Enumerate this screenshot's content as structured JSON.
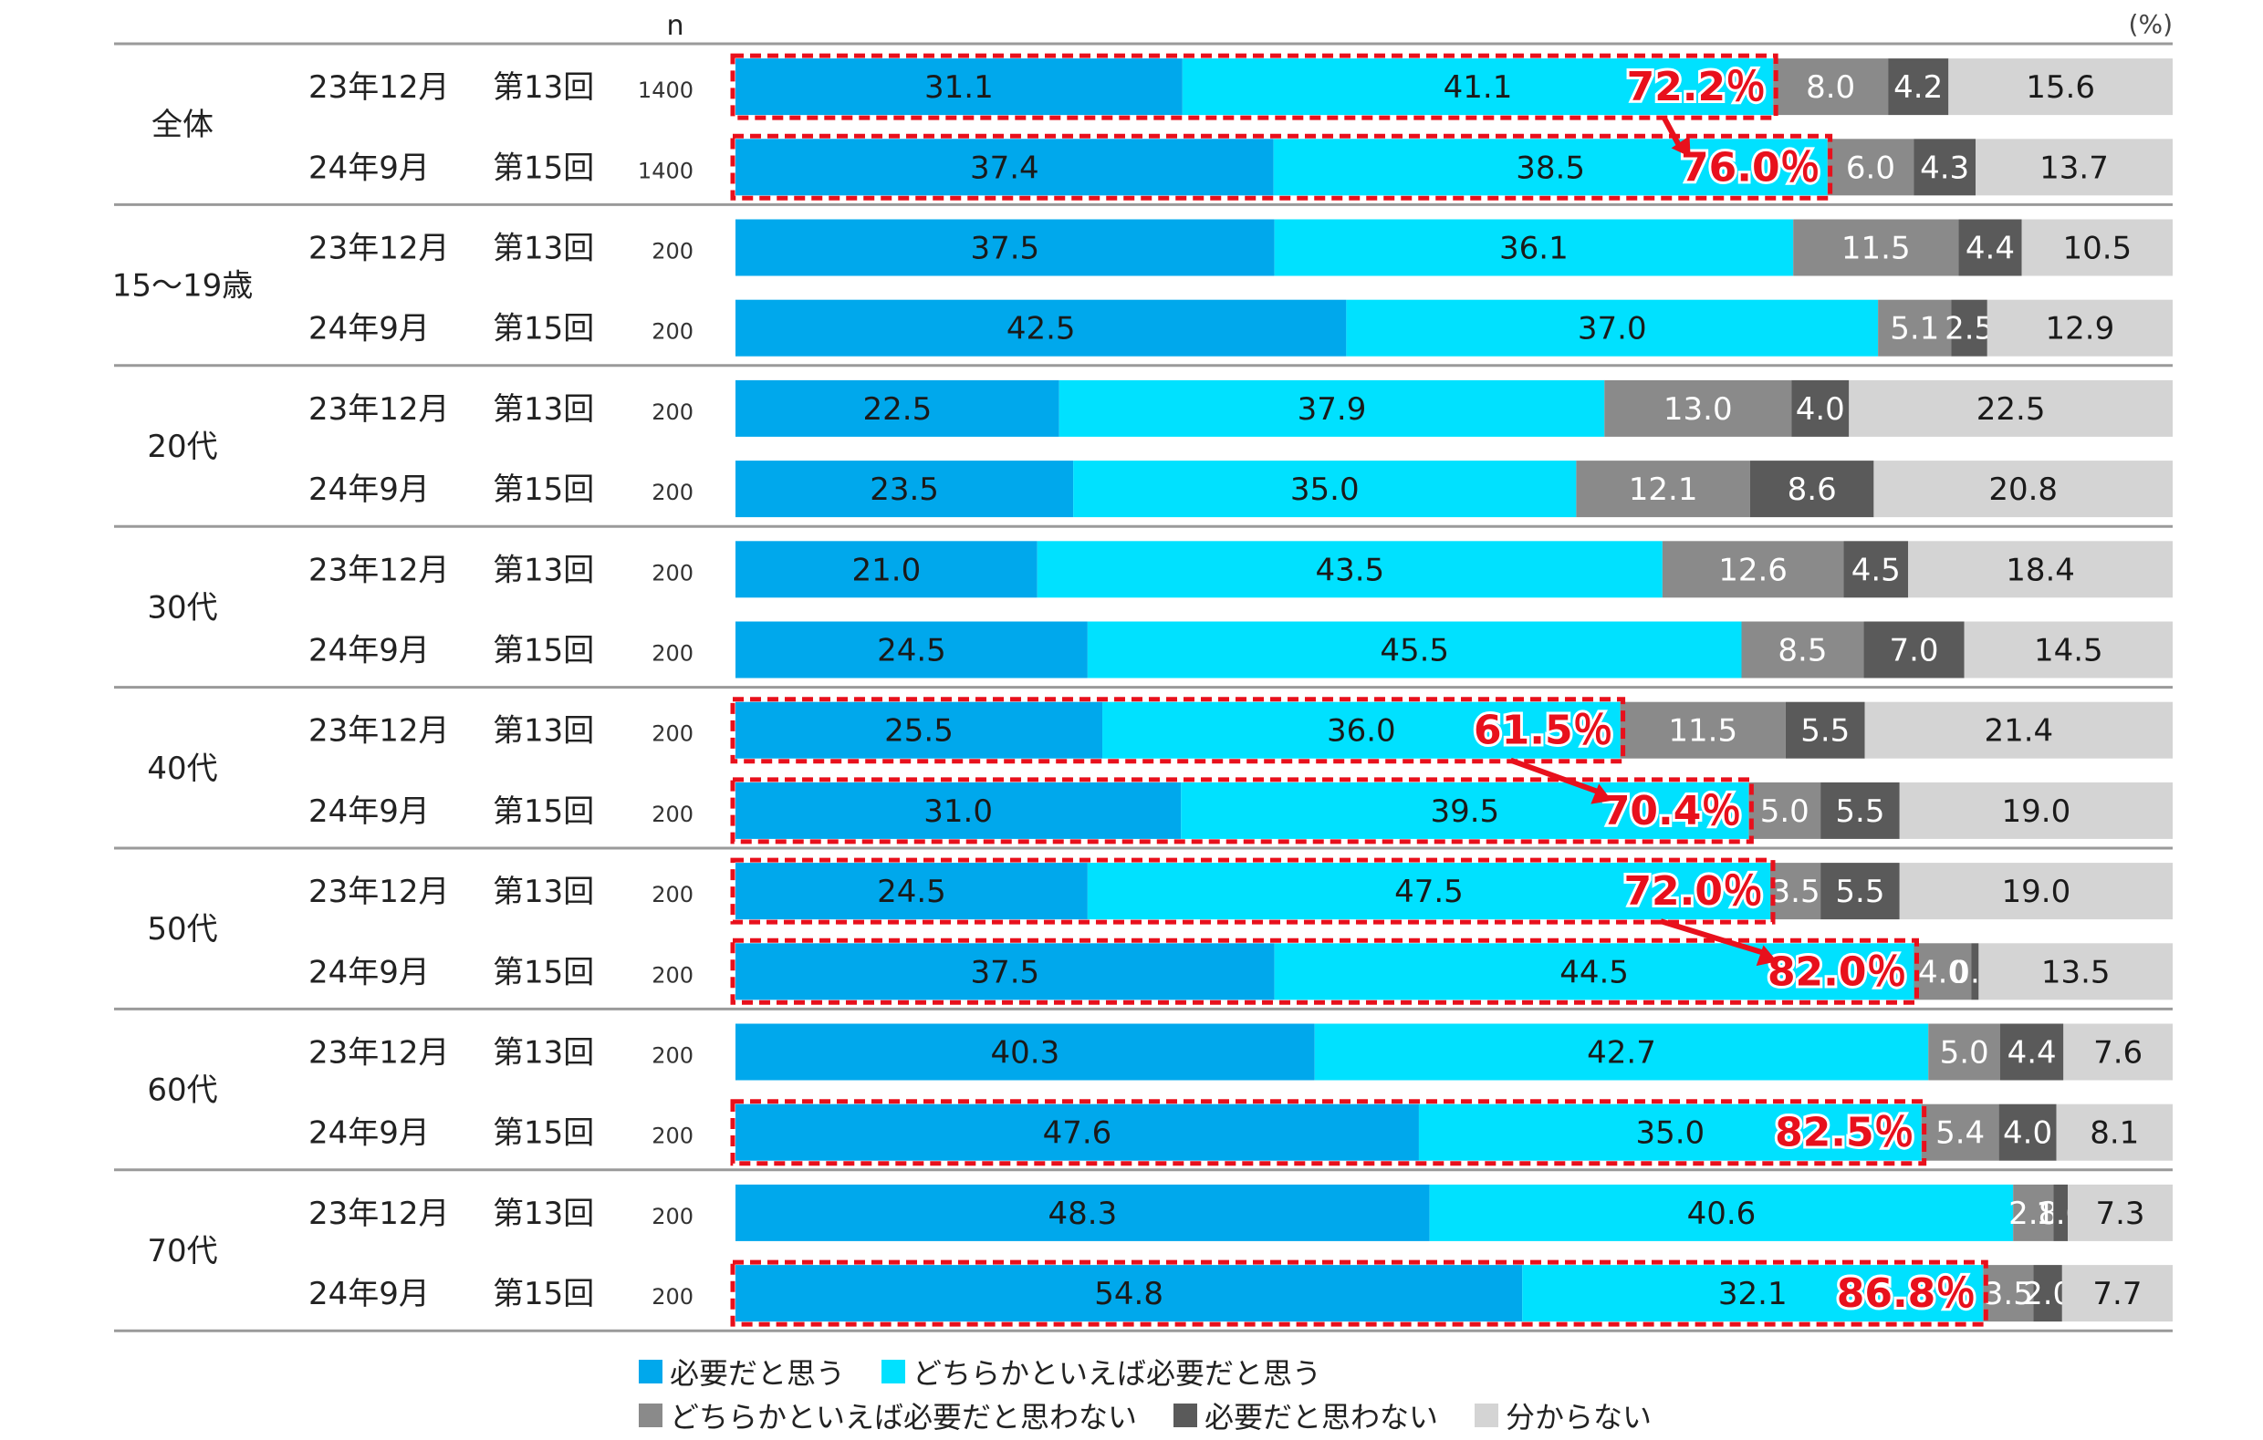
{
  "chart_data": {
    "type": "bar",
    "orientation": "horizontal-stacked-100",
    "n_header": "n",
    "unit_label": "(%)",
    "series": [
      {
        "name": "必要だと思う",
        "color": "#00A8EC"
      },
      {
        "name": "どちらかといえば必要だと思う",
        "color": "#00E1FF"
      },
      {
        "name": "どちらかといえば必要だと思わない",
        "color": "#8A8A8A"
      },
      {
        "name": "必要だと思わない",
        "color": "#5A5A5A"
      },
      {
        "name": "分からない",
        "color": "#D4D4D4"
      }
    ],
    "groups": [
      {
        "label": "全体",
        "rows": [
          {
            "period": "23年12月",
            "round": "第13回",
            "n": "1400",
            "values": [
              31.1,
              41.1,
              8.0,
              4.2,
              15.6
            ],
            "value_labels": [
              "31.1",
              "41.1",
              "8.0",
              "4.2",
              "15.6"
            ],
            "highlight": "72.2％"
          },
          {
            "period": "24年9月",
            "round": "第15回",
            "n": "1400",
            "values": [
              37.4,
              38.5,
              6.0,
              4.3,
              13.7
            ],
            "value_labels": [
              "37.4",
              "38.5",
              "6.0",
              "4.3",
              "13.7"
            ],
            "highlight": "76.0％"
          }
        ]
      },
      {
        "label": "15～19歳",
        "rows": [
          {
            "period": "23年12月",
            "round": "第13回",
            "n": "200",
            "values": [
              37.5,
              36.1,
              11.5,
              4.4,
              10.5
            ],
            "value_labels": [
              "37.5",
              "36.1",
              "11.5",
              "4.4",
              "10.5"
            ]
          },
          {
            "period": "24年9月",
            "round": "第15回",
            "n": "200",
            "values": [
              42.5,
              37.0,
              5.1,
              2.5,
              12.9
            ],
            "value_labels": [
              "42.5",
              "37.0",
              "5.1",
              "2.5",
              "12.9"
            ]
          }
        ]
      },
      {
        "label": "20代",
        "rows": [
          {
            "period": "23年12月",
            "round": "第13回",
            "n": "200",
            "values": [
              22.5,
              37.9,
              13.0,
              4.0,
              22.5
            ],
            "value_labels": [
              "22.5",
              "37.9",
              "13.0",
              "4.0",
              "22.5"
            ]
          },
          {
            "period": "24年9月",
            "round": "第15回",
            "n": "200",
            "values": [
              23.5,
              35.0,
              12.1,
              8.6,
              20.8
            ],
            "value_labels": [
              "23.5",
              "35.0",
              "12.1",
              "8.6",
              "20.8"
            ]
          }
        ]
      },
      {
        "label": "30代",
        "rows": [
          {
            "period": "23年12月",
            "round": "第13回",
            "n": "200",
            "values": [
              21.0,
              43.5,
              12.6,
              4.5,
              18.4
            ],
            "value_labels": [
              "21.0",
              "43.5",
              "12.6",
              "4.5",
              "18.4"
            ]
          },
          {
            "period": "24年9月",
            "round": "第15回",
            "n": "200",
            "values": [
              24.5,
              45.5,
              8.5,
              7.0,
              14.5
            ],
            "value_labels": [
              "24.5",
              "45.5",
              "8.5",
              "7.0",
              "14.5"
            ]
          }
        ]
      },
      {
        "label": "40代",
        "rows": [
          {
            "period": "23年12月",
            "round": "第13回",
            "n": "200",
            "values": [
              25.5,
              36.0,
              11.5,
              5.5,
              21.4
            ],
            "value_labels": [
              "25.5",
              "36.0",
              "11.5",
              "5.5",
              "21.4"
            ],
            "highlight": "61.5％"
          },
          {
            "period": "24年9月",
            "round": "第15回",
            "n": "200",
            "values": [
              31.0,
              39.5,
              5.0,
              5.5,
              19.0
            ],
            "value_labels": [
              "31.0",
              "39.5",
              "5.0",
              "5.5",
              "19.0"
            ],
            "highlight": "70.4％"
          }
        ]
      },
      {
        "label": "50代",
        "rows": [
          {
            "period": "23年12月",
            "round": "第13回",
            "n": "200",
            "values": [
              24.5,
              47.5,
              3.5,
              5.5,
              19.0
            ],
            "value_labels": [
              "24.5",
              "47.5",
              "3.5",
              "5.5",
              "19.0"
            ],
            "highlight": "72.0％"
          },
          {
            "period": "24年9月",
            "round": "第15回",
            "n": "200",
            "values": [
              37.5,
              44.5,
              4.0,
              0.5,
              13.5
            ],
            "value_labels": [
              "37.5",
              "44.5",
              "4.0",
              "0.5",
              "13.5"
            ],
            "highlight": "82.0％"
          }
        ]
      },
      {
        "label": "60代",
        "rows": [
          {
            "period": "23年12月",
            "round": "第13回",
            "n": "200",
            "values": [
              40.3,
              42.7,
              5.0,
              4.4,
              7.6
            ],
            "value_labels": [
              "40.3",
              "42.7",
              "5.0",
              "4.4",
              "7.6"
            ]
          },
          {
            "period": "24年9月",
            "round": "第15回",
            "n": "200",
            "values": [
              47.6,
              35.0,
              5.4,
              4.0,
              8.1
            ],
            "value_labels": [
              "47.6",
              "35.0",
              "5.4",
              "4.0",
              "8.1"
            ],
            "highlight": "82.5％"
          }
        ]
      },
      {
        "label": "70代",
        "rows": [
          {
            "period": "23年12月",
            "round": "第13回",
            "n": "200",
            "values": [
              48.3,
              40.6,
              2.8,
              1.0,
              7.3
            ],
            "value_labels": [
              "48.3",
              "40.6",
              "2.8",
              "1.0",
              "7.3"
            ]
          },
          {
            "period": "24年9月",
            "round": "第15回",
            "n": "200",
            "values": [
              54.8,
              32.1,
              3.5,
              2.0,
              7.7
            ],
            "value_labels": [
              "54.8",
              "32.1",
              "3.5",
              "2.0",
              "7.7"
            ],
            "highlight": "86.8％"
          }
        ]
      }
    ],
    "arrows_between_rows_in_groups": [
      "全体",
      "40代",
      "50代"
    ],
    "highlight_color": "#E8101C"
  }
}
